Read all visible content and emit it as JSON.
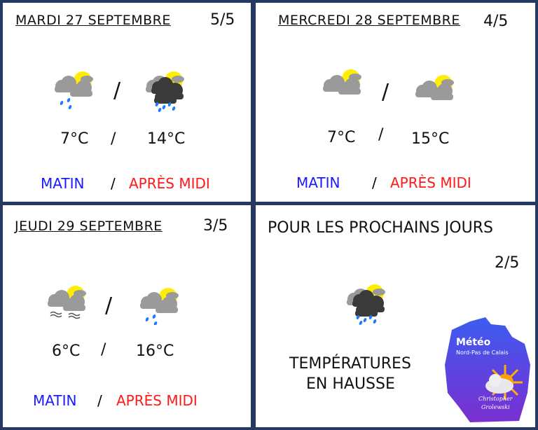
{
  "days": [
    {
      "title": "MARDI 27 SEPTEMBRE",
      "score": "5/5",
      "morning_icon": "sun-cloud-rain-icon",
      "afternoon_icon": "sun-storm-rain-icon",
      "morning_temp": "7°C",
      "afternoon_temp": "14°C"
    },
    {
      "title": "MERCREDI 28 SEPTEMBRE",
      "score": "4/5",
      "morning_icon": "sun-cloud-icon",
      "afternoon_icon": "sun-cloud-icon",
      "morning_temp": "7°C",
      "afternoon_temp": "15°C"
    },
    {
      "title": "JEUDI 29 SEPTEMBRE",
      "score": "3/5",
      "morning_icon": "sun-fog-icon",
      "afternoon_icon": "sun-cloud-rain-icon",
      "morning_temp": "6°C",
      "afternoon_temp": "16°C"
    }
  ],
  "labels": {
    "slash": "/",
    "morning": "MATIN",
    "afternoon": "APRÈS MIDI"
  },
  "outlook": {
    "title": "POUR LES PROCHAINS JOURS",
    "score": "2/5",
    "icon": "sun-storm-rain-icon",
    "line1": "TEMPÉRATURES",
    "line2": "EN HAUSSE"
  },
  "logo": {
    "title": "Météo",
    "subtitle": "Nord-Pas de Calais",
    "author1": "Christopher",
    "author2": "Grolewski"
  },
  "colors": {
    "morning": "#1a1aff",
    "afternoon": "#ff1a1a",
    "background": "#253a62"
  }
}
